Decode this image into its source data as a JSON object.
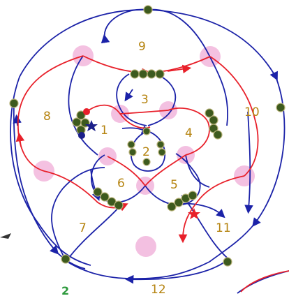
{
  "regions": [
    "1",
    "2",
    "3",
    "4",
    "5",
    "6",
    "7",
    "8",
    "9",
    "10",
    "11",
    "12"
  ],
  "corner_label": "2",
  "colors": {
    "blue_thread": "#1b22a8",
    "red_thread": "#e8202a",
    "bead_green": "#3d5a1e",
    "ring_pink": "#f2b6dc",
    "label_gold": "#b5830f",
    "label_green": "#2e9a3d",
    "star_blue": "#1b1f8a",
    "star_red": "#e8202a"
  },
  "markers": [
    "blue-star",
    "red-star",
    "red-dot",
    "blue-dot"
  ]
}
